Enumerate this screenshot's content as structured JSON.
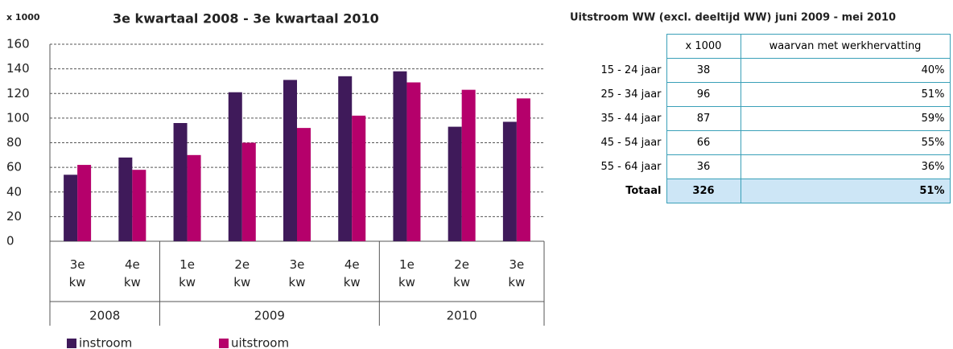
{
  "chart_data": {
    "type": "bar",
    "title": "3e kwartaal 2008 - 3e kwartaal 2010",
    "y_label": "x 1000",
    "groups": [
      {
        "label": "2008",
        "categories": [
          "3e kw",
          "4e kw"
        ]
      },
      {
        "label": "2009",
        "categories": [
          "1e kw",
          "2e kw",
          "3e kw",
          "4e kw"
        ]
      },
      {
        "label": "2010",
        "categories": [
          "1e kw",
          "2e kw",
          "3e kw"
        ]
      }
    ],
    "series": [
      {
        "name": "instroom",
        "color": "#3f1a5a",
        "values": [
          54,
          68,
          96,
          121,
          131,
          134,
          138,
          93,
          97
        ]
      },
      {
        "name": "uitstroom",
        "color": "#b5006b",
        "values": [
          62,
          58,
          70,
          80,
          92,
          102,
          129,
          123,
          116
        ]
      }
    ],
    "ylim": [
      0,
      160
    ],
    "yticks": [
      0,
      20,
      40,
      60,
      80,
      100,
      120,
      140,
      160
    ],
    "grid": true
  },
  "table": {
    "title": "Uitstroom WW (excl. deeltijd WW) juni 2009 - mei 2010",
    "header": [
      "x 1000",
      "waarvan met werkhervatting"
    ],
    "rows": [
      [
        "15 - 24 jaar",
        "38",
        "40%"
      ],
      [
        "25 - 34 jaar",
        "96",
        "51%"
      ],
      [
        "35 - 44 jaar",
        "87",
        "59%"
      ],
      [
        "45 - 54 jaar",
        "66",
        "55%"
      ],
      [
        "55 - 64 jaar",
        "36",
        "36%"
      ]
    ],
    "total": [
      "Totaal",
      "326",
      "51%"
    ]
  }
}
